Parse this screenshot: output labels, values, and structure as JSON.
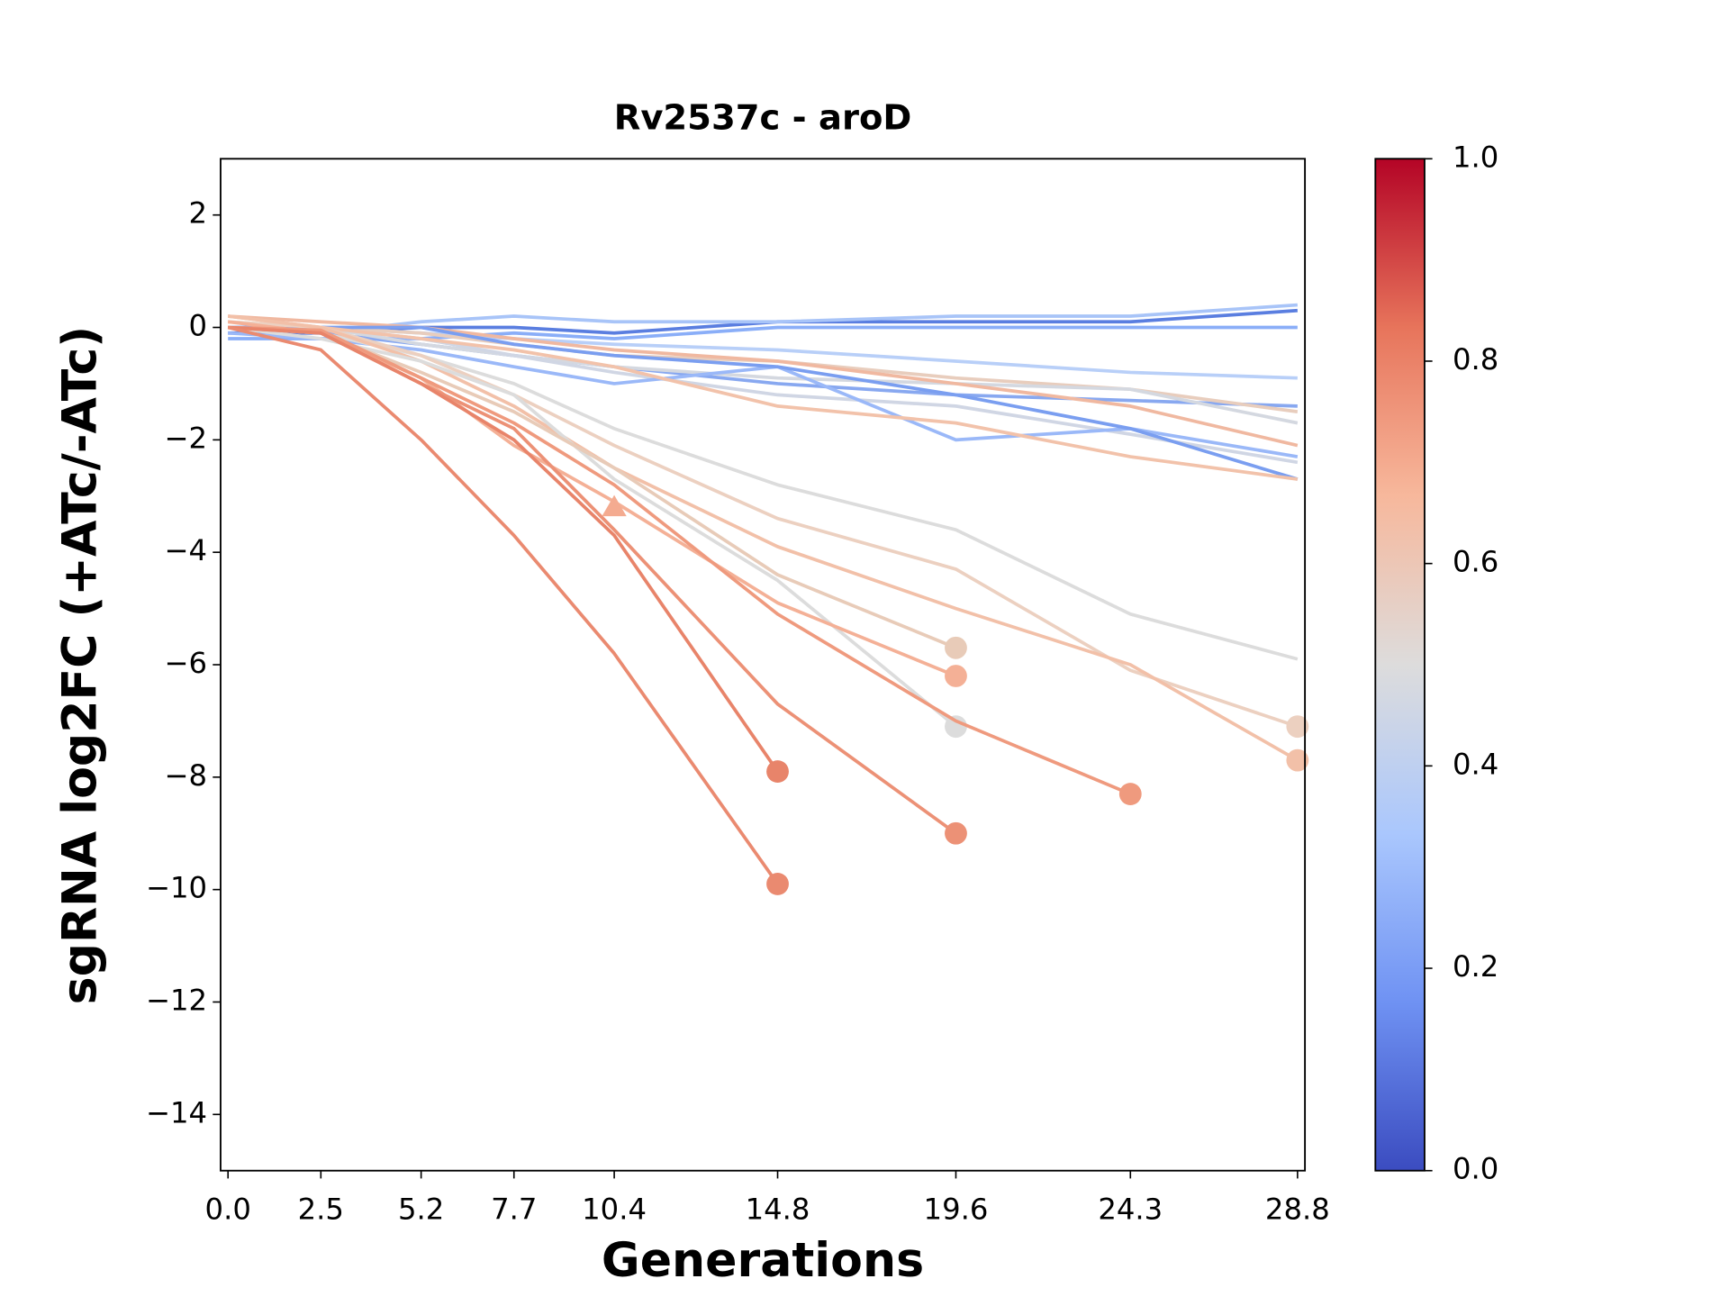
{
  "chart_data": {
    "type": "line",
    "title": "Rv2537c - aroD",
    "xlabel": "Generations",
    "ylabel": "sgRNA log2FC (+ATc/-ATc)",
    "x": [
      0,
      2.5,
      5.2,
      7.7,
      10.4,
      14.8,
      19.6,
      24.3,
      28.8
    ],
    "xlim": [
      -0.2,
      29.0
    ],
    "xticks": [
      {
        "value": 0,
        "label": "0.0"
      },
      2.5,
      5.2,
      7.7,
      10.4,
      14.8,
      19.6,
      24.3,
      28.8
    ],
    "ylim": [
      -15,
      3
    ],
    "yticks": [
      2,
      0,
      {
        "value": -2,
        "label": "−2"
      },
      {
        "value": -4,
        "label": "−4"
      },
      {
        "value": -6,
        "label": "−6"
      },
      {
        "value": -8,
        "label": "−8"
      },
      {
        "value": -10,
        "label": "−10"
      },
      {
        "value": -12,
        "label": "−12"
      },
      {
        "value": -14,
        "label": "−14"
      }
    ],
    "series": [
      {
        "color": "#5a7ee0",
        "values": [
          -0.1,
          -0.1,
          0,
          0,
          -0.1,
          0.1,
          0.1,
          0.1,
          0.3
        ]
      },
      {
        "color": "#a8c4f8",
        "values": [
          0,
          -0.1,
          0.1,
          0.2,
          0.1,
          0.1,
          0.2,
          0.2,
          0.4
        ]
      },
      {
        "color": "#8aaef8",
        "values": [
          -0.2,
          -0.2,
          -0.2,
          -0.1,
          -0.2,
          0,
          0,
          0,
          0
        ]
      },
      {
        "color": "#b8cff8",
        "values": [
          0,
          0,
          -0.1,
          -0.2,
          -0.3,
          -0.4,
          -0.6,
          -0.8,
          -0.9
        ]
      },
      {
        "color": "#88a8f0",
        "values": [
          0,
          -0.1,
          -0.3,
          -0.5,
          -0.7,
          -1.0,
          -1.2,
          -1.3,
          -1.4
        ]
      },
      {
        "color": "#e8cdbd",
        "values": [
          0.1,
          0,
          -0.1,
          -0.3,
          -0.5,
          -0.6,
          -0.9,
          -1.1,
          -1.5
        ]
      },
      {
        "color": "#d4d8e0",
        "values": [
          0,
          0,
          -0.3,
          -0.5,
          -0.7,
          -0.9,
          -1.0,
          -1.1,
          -1.7
        ]
      },
      {
        "color": "#f0b8a0",
        "values": [
          0.2,
          0.1,
          0,
          -0.2,
          -0.4,
          -0.6,
          -1.0,
          -1.4,
          -2.1
        ]
      },
      {
        "color": "#d0d6e4",
        "values": [
          0,
          0,
          -0.2,
          -0.5,
          -0.8,
          -1.2,
          -1.4,
          -1.9,
          -2.4
        ]
      },
      {
        "color": "#9ab8f8",
        "values": [
          -0.1,
          -0.2,
          -0.4,
          -0.7,
          -1.0,
          -0.7,
          -2.0,
          -1.8,
          -2.3
        ]
      },
      {
        "color": "#7a9ef0",
        "values": [
          0,
          0,
          0,
          -0.3,
          -0.5,
          -0.7,
          -1.2,
          -1.8,
          -2.7
        ]
      },
      {
        "color": "#f2c2aa",
        "values": [
          0.2,
          0,
          -0.2,
          -0.4,
          -0.7,
          -1.4,
          -1.7,
          -2.3,
          -2.7
        ]
      },
      {
        "color": "#dcdcdc",
        "values": [
          0,
          -0.1,
          -0.5,
          -1.0,
          -1.8,
          -2.8,
          -3.6,
          -5.1,
          -5.9
        ]
      },
      {
        "color": "#ecd0c0",
        "marker": "o",
        "values": [
          0.1,
          0,
          -0.5,
          -1.2,
          -2.1,
          -3.4,
          -4.3,
          -6.1,
          -7.1
        ]
      },
      {
        "color": "#f2c0a8",
        "marker": "o",
        "values": [
          0.2,
          0,
          -0.6,
          -1.4,
          -2.5,
          -3.9,
          -5.0,
          -6.0,
          -7.7
        ]
      },
      {
        "color": "#dcdcdc",
        "marker": "o",
        "values": [
          0,
          -0.2,
          -0.6,
          -1.2,
          -2.7,
          -4.5,
          -7.1,
          null,
          null
        ]
      },
      {
        "color": "#e8cbb8",
        "marker": "o",
        "values": [
          0,
          -0.1,
          -0.8,
          -1.5,
          -2.5,
          -4.4,
          -5.7,
          null,
          null
        ]
      },
      {
        "color": "#f4b096",
        "marker": "o",
        "values": [
          0.1,
          -0.1,
          -0.9,
          -2.1,
          -3.1,
          -4.9,
          -6.2,
          null,
          null
        ]
      },
      {
        "color": "#ef9a7e",
        "marker": "o",
        "values": [
          0,
          -0.05,
          -0.9,
          -1.7,
          -2.8,
          -5.1,
          -7.0,
          -8.3,
          null
        ]
      },
      {
        "color": "#ec9176",
        "marker": "o",
        "values": [
          0,
          -0.1,
          -1.0,
          -1.8,
          -3.6,
          -6.7,
          -9.0,
          null,
          null
        ]
      },
      {
        "color": "#e8846a",
        "marker": "o",
        "values": [
          0,
          -0.1,
          -1.0,
          -2.0,
          -3.7,
          -7.9,
          null,
          null,
          null
        ]
      },
      {
        "color": "#ea8a70",
        "marker": "o",
        "values": [
          0,
          -0.4,
          -2.0,
          -3.7,
          -5.8,
          -9.9,
          null,
          null,
          null
        ]
      },
      {
        "color": "#f4ab90",
        "marker": "^",
        "values": [
          null,
          null,
          null,
          null,
          -3.2,
          null,
          null,
          null,
          null
        ]
      }
    ],
    "colorbar": {
      "lim": [
        0,
        1
      ],
      "ticks": [
        {
          "value": 0,
          "label": "0.0"
        },
        0.2,
        0.4,
        0.6,
        0.8,
        {
          "value": 1,
          "label": "1.0"
        }
      ],
      "colors": [
        "#3b4cc0",
        "#6f92f3",
        "#aac7fd",
        "#dddcdc",
        "#f7b89c",
        "#e7745b",
        "#b40426"
      ]
    }
  }
}
